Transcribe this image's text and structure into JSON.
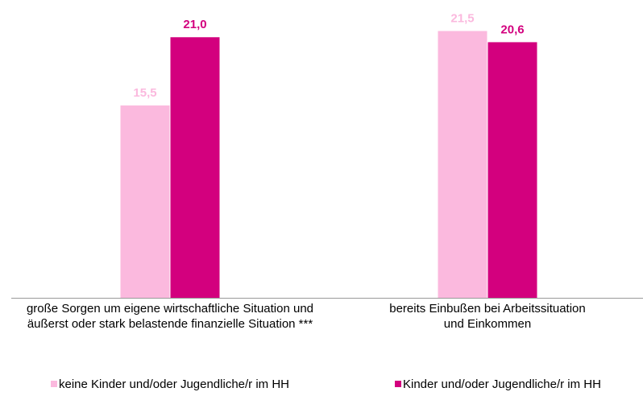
{
  "chart_data": {
    "type": "bar",
    "categories": [
      "große Sorgen um eigene wirtschaftliche Situation und äußerst oder stark belastende finanzielle Situation ***",
      "bereits Einbußen bei Arbeitssituation und Einkommen"
    ],
    "series": [
      {
        "name": "keine Kinder und/oder Jugendliche/r im HH",
        "color": "#fbb9de",
        "values": [
          15.5,
          21.5
        ],
        "value_labels": [
          "15,5",
          "21,5"
        ]
      },
      {
        "name": "Kinder und/oder Jugendliche/r im HH",
        "color": "#d3007e",
        "values": [
          21.0,
          20.6
        ],
        "value_labels": [
          "21,0",
          "20,6"
        ]
      }
    ],
    "ylim": [
      0,
      24
    ]
  }
}
